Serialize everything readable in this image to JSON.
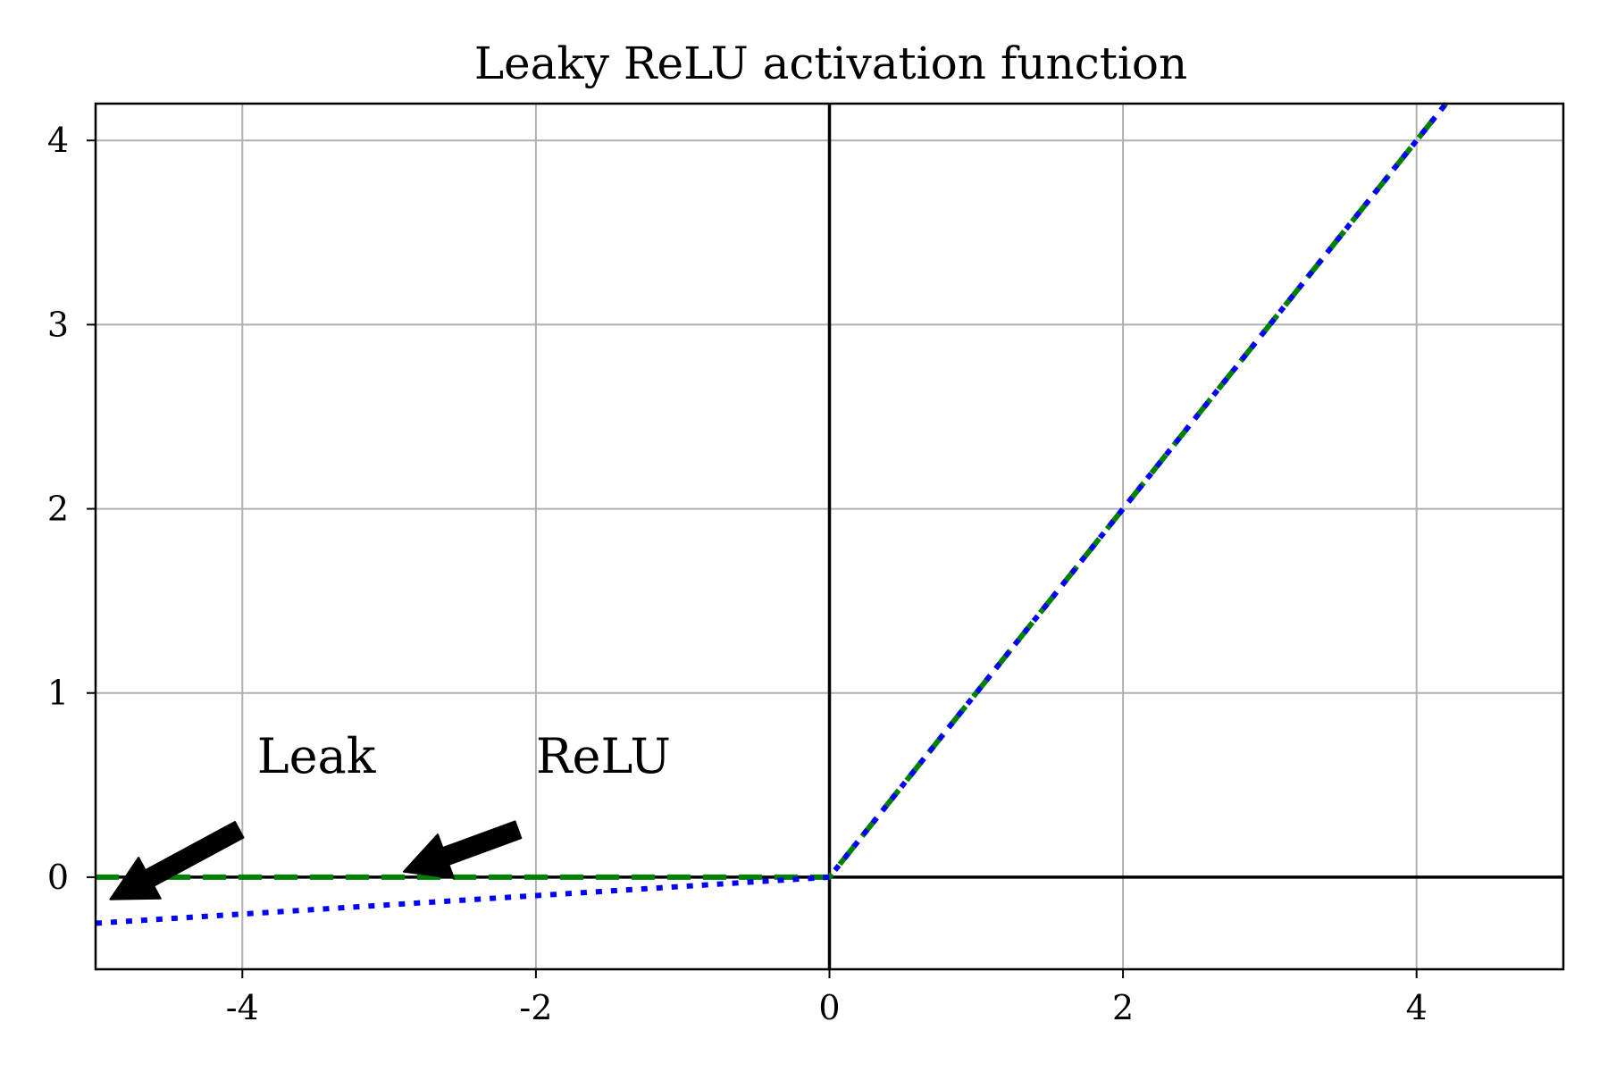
{
  "chart_data": {
    "type": "line",
    "title": "Leaky ReLU activation function",
    "xlabel": "",
    "ylabel": "",
    "xlim": [
      -5,
      5
    ],
    "ylim": [
      -0.5,
      4.2
    ],
    "xticks": [
      -4,
      -2,
      0,
      2,
      4
    ],
    "yticks": [
      0,
      1,
      2,
      3,
      4
    ],
    "xtick_labels": [
      "-4",
      "-2",
      "0",
      "2",
      "4"
    ],
    "ytick_labels": [
      "0",
      "1",
      "2",
      "3",
      "4"
    ],
    "grid": true,
    "legend": false,
    "series": [
      {
        "color": "#008000",
        "style": "dashed",
        "x": [
          -5,
          0,
          4.2
        ],
        "y": [
          0,
          0,
          4.2
        ]
      },
      {
        "color": "#0000ff",
        "style": "dotted",
        "x": [
          -5,
          0,
          4.2
        ],
        "y": [
          -0.25,
          0,
          4.2
        ]
      }
    ],
    "reference_lines": [
      {
        "orientation": "horizontal",
        "value": 0,
        "color": "#000000"
      },
      {
        "orientation": "vertical",
        "value": 0,
        "color": "#000000"
      }
    ],
    "annotations": [
      {
        "text": "Leak",
        "x": -3.9,
        "y": 0.5,
        "arrow_to": [
          -4.9,
          -0.12
        ]
      },
      {
        "text": "ReLU",
        "x": -2.0,
        "y": 0.5,
        "arrow_to": [
          -2.9,
          0.03
        ]
      }
    ]
  }
}
